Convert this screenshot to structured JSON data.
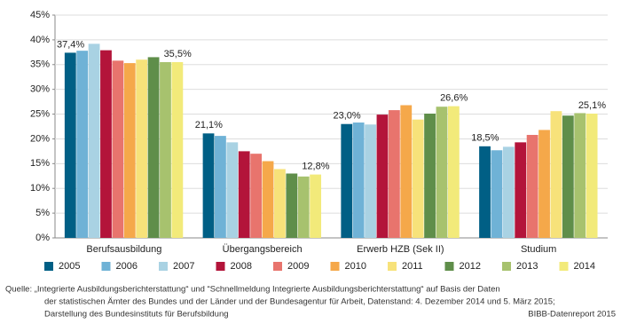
{
  "chart_data": {
    "type": "bar",
    "categories": [
      "Berufsausbildung",
      "Übergangsbereich",
      "Erwerb HZB (Sek II)",
      "Studium"
    ],
    "series": [
      {
        "name": "2005",
        "color": "#005f85",
        "values": [
          37.4,
          21.1,
          23.0,
          18.5
        ],
        "value_labels": [
          "37,4%",
          "21,1%",
          "23,0%",
          "18,5%"
        ]
      },
      {
        "name": "2006",
        "color": "#6fb2d6",
        "values": [
          37.8,
          20.6,
          23.3,
          17.7
        ]
      },
      {
        "name": "2007",
        "color": "#a9d2e3",
        "values": [
          39.2,
          19.3,
          22.9,
          18.4
        ]
      },
      {
        "name": "2008",
        "color": "#b3143a",
        "values": [
          37.9,
          17.5,
          24.9,
          19.3
        ]
      },
      {
        "name": "2009",
        "color": "#e8746d",
        "values": [
          35.8,
          17.0,
          25.8,
          20.8
        ]
      },
      {
        "name": "2010",
        "color": "#f5a84a",
        "values": [
          35.3,
          15.5,
          26.8,
          21.8
        ]
      },
      {
        "name": "2011",
        "color": "#f7e27a",
        "values": [
          36.0,
          13.9,
          23.9,
          25.6
        ]
      },
      {
        "name": "2012",
        "color": "#5f8e4a",
        "values": [
          36.5,
          13.0,
          25.1,
          24.7
        ]
      },
      {
        "name": "2013",
        "color": "#a7c26e",
        "values": [
          35.5,
          12.4,
          26.5,
          25.2
        ]
      },
      {
        "name": "2014",
        "color": "#f2ea7a",
        "values": [
          35.5,
          12.8,
          26.6,
          25.1
        ],
        "value_labels": [
          "35,5%",
          "12,8%",
          "26,6%",
          "25,1%"
        ]
      }
    ],
    "ylim": [
      0,
      45
    ],
    "yticks": [
      {
        "value": 0,
        "label": "0%"
      },
      {
        "value": 5,
        "label": "5%"
      },
      {
        "value": 10,
        "label": "10%"
      },
      {
        "value": 15,
        "label": "15%"
      },
      {
        "value": 20,
        "label": "20%"
      },
      {
        "value": 25,
        "label": "25%"
      },
      {
        "value": 30,
        "label": "30%"
      },
      {
        "value": 35,
        "label": "35%"
      },
      {
        "value": 40,
        "label": "40%"
      },
      {
        "value": 45,
        "label": "45%"
      }
    ],
    "grid": true,
    "legend": "bottom"
  },
  "footer": {
    "source": [
      "Quelle: „Integrierte Ausbildungsberichterstattung“ und “Schnellmeldung Integrierte Ausbildungsberichterstattung“ auf Basis der Daten",
      "der statistischen Ämter des Bundes und der Länder und der Bundesagentur für Arbeit, Datenstand: 4. Dezember 2014 und 5. März 2015;",
      "Darstellung des Bundesinstituts für Berufsbildung"
    ],
    "credit": "BIBB-Datenreport 2015"
  }
}
